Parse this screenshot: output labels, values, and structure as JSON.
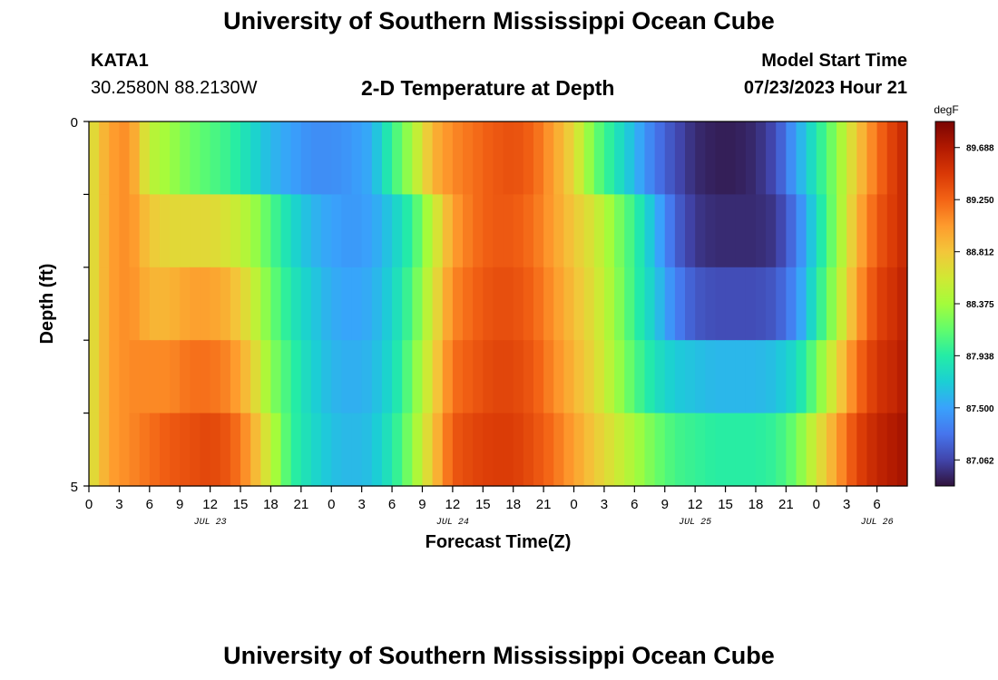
{
  "header": {
    "title": "University of Southern Mississippi Ocean Cube",
    "station": "KATA1",
    "coordinates": "30.2580N  88.2130W",
    "subtitle": "2-D Temperature at Depth",
    "start_label": "Model Start Time",
    "start_value": "07/23/2023 Hour 21"
  },
  "footer": {
    "title": "University of Southern Mississippi Ocean Cube"
  },
  "chart_data": {
    "type": "heatmap",
    "title": "2-D Temperature at Depth",
    "xlabel": "Forecast Time(Z)",
    "ylabel": "Depth (ft)",
    "xlim": [
      0,
      81
    ],
    "ylim": [
      0,
      5
    ],
    "y_tick_labels": [
      "0",
      "5"
    ],
    "x_tick_labels": [
      "0",
      "3",
      "6",
      "9",
      "12",
      "15",
      "18",
      "21",
      "0",
      "3",
      "6",
      "9",
      "12",
      "15",
      "18",
      "21",
      "0",
      "3",
      "6",
      "9",
      "12",
      "15",
      "18",
      "21",
      "0",
      "3",
      "6"
    ],
    "date_labels": [
      {
        "label": "JUL 23",
        "x": 12
      },
      {
        "label": "JUL 24",
        "x": 36
      },
      {
        "label": "JUL 25",
        "x": 60
      },
      {
        "label": "JUL 26",
        "x": 78
      }
    ],
    "colorbar": {
      "unit": "degF",
      "min": 86.843,
      "max": 89.907,
      "ticks": [
        "89.688",
        "89.250",
        "88.812",
        "88.375",
        "87.938",
        "87.500",
        "87.062"
      ],
      "colors": [
        "#30123b",
        "#4145ab",
        "#4675ed",
        "#39a2fc",
        "#1bcfd4",
        "#24eca6",
        "#61fc6c",
        "#a4fc3b",
        "#d1e834",
        "#f3c63a",
        "#fe9b2d",
        "#f36315",
        "#d93806",
        "#b11901",
        "#7a0402"
      ]
    },
    "depth_layers": [
      0,
      1,
      2,
      3,
      4,
      5
    ],
    "hours": [
      0,
      2,
      4,
      6,
      8,
      10,
      12,
      14,
      16,
      18,
      20,
      22,
      24,
      26,
      28,
      30,
      32,
      34,
      36,
      38,
      40,
      42,
      44,
      46,
      48,
      50,
      52,
      54,
      56,
      58,
      60,
      62,
      64,
      66,
      68,
      70,
      72,
      74,
      76,
      78,
      80,
      81
    ],
    "series": [
      {
        "name": "0 ft",
        "values": [
          88.6,
          89.0,
          89.1,
          88.5,
          88.35,
          88.2,
          88.1,
          88.0,
          87.8,
          87.6,
          87.5,
          87.4,
          87.4,
          87.45,
          87.55,
          88.0,
          88.4,
          88.9,
          89.1,
          89.2,
          89.3,
          89.35,
          89.25,
          89.0,
          88.7,
          88.2,
          87.9,
          87.6,
          87.3,
          87.1,
          86.95,
          86.9,
          86.9,
          86.95,
          87.1,
          87.5,
          87.9,
          88.3,
          88.8,
          89.2,
          89.5,
          89.6
        ]
      },
      {
        "name": "1 ft",
        "values": [
          88.6,
          89.0,
          89.1,
          88.8,
          88.7,
          88.7,
          88.7,
          88.6,
          88.4,
          88.1,
          87.8,
          87.6,
          87.5,
          87.45,
          87.5,
          87.7,
          88.0,
          88.5,
          89.0,
          89.2,
          89.3,
          89.3,
          89.2,
          89.0,
          88.8,
          88.6,
          88.3,
          88.0,
          87.6,
          87.2,
          87.0,
          86.95,
          86.95,
          86.95,
          87.0,
          87.3,
          87.8,
          88.3,
          88.9,
          89.3,
          89.5,
          89.6
        ]
      },
      {
        "name": "2 ft",
        "values": [
          88.6,
          89.0,
          89.1,
          88.9,
          88.9,
          89.0,
          89.0,
          88.9,
          88.6,
          88.2,
          87.9,
          87.7,
          87.55,
          87.5,
          87.55,
          87.75,
          88.1,
          88.6,
          89.1,
          89.25,
          89.35,
          89.35,
          89.25,
          89.05,
          88.85,
          88.65,
          88.35,
          88.0,
          87.7,
          87.35,
          87.15,
          87.1,
          87.1,
          87.1,
          87.15,
          87.4,
          87.9,
          88.4,
          89.0,
          89.4,
          89.55,
          89.65
        ]
      },
      {
        "name": "3 ft",
        "values": [
          88.6,
          89.0,
          89.1,
          89.1,
          89.1,
          89.2,
          89.2,
          89.1,
          88.8,
          88.3,
          88.0,
          87.75,
          87.6,
          87.55,
          87.6,
          87.8,
          88.2,
          88.7,
          89.2,
          89.3,
          89.4,
          89.4,
          89.3,
          89.1,
          88.9,
          88.7,
          88.4,
          88.1,
          87.85,
          87.7,
          87.65,
          87.6,
          87.6,
          87.6,
          87.65,
          87.8,
          88.2,
          88.7,
          89.2,
          89.5,
          89.6,
          89.7
        ]
      },
      {
        "name": "4 ft",
        "values": [
          88.6,
          89.0,
          89.1,
          89.2,
          89.3,
          89.35,
          89.4,
          89.3,
          89.0,
          88.5,
          88.0,
          87.8,
          87.65,
          87.6,
          87.65,
          87.9,
          88.3,
          88.8,
          89.3,
          89.4,
          89.45,
          89.45,
          89.35,
          89.2,
          89.0,
          88.8,
          88.6,
          88.4,
          88.2,
          88.05,
          88.0,
          87.95,
          87.95,
          87.95,
          88.0,
          88.2,
          88.6,
          89.0,
          89.4,
          89.6,
          89.7,
          89.75
        ]
      }
    ]
  }
}
